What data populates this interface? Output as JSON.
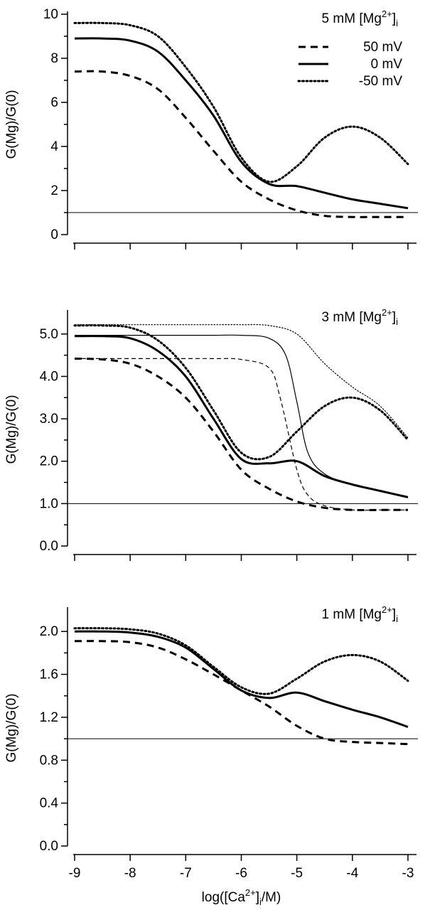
{
  "chart_data": [
    {
      "type": "line",
      "title": "5 mM [Mg2+]i",
      "title_parts": {
        "base": "5 mM [Mg",
        "sup": "2+",
        "close": "]",
        "sub": "i"
      },
      "ylabel": "G(Mg)/G(0)",
      "xlabel": "",
      "xlim": [
        -9,
        -3
      ],
      "ylim": [
        0,
        10
      ],
      "yticks": [
        0,
        2,
        4,
        6,
        8,
        10
      ],
      "ytick_labels": [
        "0",
        "2",
        "4",
        "6",
        "8",
        "10"
      ],
      "reference_line": 1.0,
      "legend": {
        "placement": "top-right",
        "entries": [
          "50 mV",
          "0 mV",
          "-50 mV"
        ]
      },
      "series": [
        {
          "name": "50 mV",
          "style": "dashed",
          "weight": "thick",
          "x": [
            -9,
            -8.5,
            -8,
            -7.5,
            -7,
            -6.5,
            -6,
            -5.5,
            -5,
            -4.5,
            -4,
            -3.5,
            -3
          ],
          "y": [
            7.4,
            7.4,
            7.2,
            6.6,
            5.3,
            3.8,
            2.4,
            1.6,
            1.1,
            0.85,
            0.8,
            0.8,
            0.8
          ]
        },
        {
          "name": "0 mV",
          "style": "solid",
          "weight": "thick",
          "x": [
            -9,
            -8.5,
            -8,
            -7.5,
            -7,
            -6.5,
            -6,
            -5.5,
            -5,
            -4.5,
            -4,
            -3.5,
            -3
          ],
          "y": [
            8.9,
            8.9,
            8.8,
            8.3,
            7.0,
            5.4,
            3.3,
            2.3,
            2.2,
            1.9,
            1.6,
            1.4,
            1.2
          ]
        },
        {
          "name": "-50 mV",
          "style": "dotted",
          "weight": "thick",
          "x": [
            -9,
            -8.5,
            -8,
            -7.5,
            -7,
            -6.5,
            -6,
            -5.5,
            -5,
            -4.5,
            -4,
            -3.5,
            -3
          ],
          "y": [
            9.6,
            9.6,
            9.5,
            9.0,
            7.6,
            5.8,
            3.5,
            2.4,
            3.1,
            4.4,
            4.9,
            4.4,
            3.2
          ]
        }
      ]
    },
    {
      "type": "line",
      "title": "3 mM [Mg2+]i",
      "title_parts": {
        "base": "3 mM [Mg",
        "sup": "2+",
        "close": "]",
        "sub": "i"
      },
      "ylabel": "G(Mg)/G(0)",
      "xlabel": "",
      "xlim": [
        -9,
        -3
      ],
      "ylim": [
        0,
        5.5
      ],
      "yticks": [
        0,
        1,
        2,
        3,
        4,
        5
      ],
      "ytick_labels": [
        "0.0",
        "1.0",
        "2.0",
        "3.0",
        "4.0",
        "5.0"
      ],
      "reference_line": 1.0,
      "series": [
        {
          "name": "50 mV",
          "style": "dashed",
          "weight": "thick",
          "x": [
            -9,
            -8.5,
            -8,
            -7.5,
            -7,
            -6.5,
            -6,
            -5.5,
            -5,
            -4.5,
            -4,
            -3.5,
            -3
          ],
          "y": [
            4.42,
            4.4,
            4.3,
            4.0,
            3.5,
            2.7,
            1.8,
            1.35,
            1.05,
            0.9,
            0.85,
            0.85,
            0.85
          ]
        },
        {
          "name": "0 mV",
          "style": "solid",
          "weight": "thick",
          "x": [
            -9,
            -8.5,
            -8,
            -7.5,
            -7,
            -6.5,
            -6,
            -5.5,
            -5,
            -4.5,
            -4,
            -3.5,
            -3
          ],
          "y": [
            4.95,
            4.95,
            4.9,
            4.6,
            4.0,
            3.0,
            2.05,
            1.95,
            2.0,
            1.65,
            1.45,
            1.3,
            1.15
          ]
        },
        {
          "name": "-50 mV",
          "style": "dotted",
          "weight": "thick",
          "x": [
            -9,
            -8.5,
            -8,
            -7.5,
            -7,
            -6.5,
            -6,
            -5.5,
            -5,
            -4.5,
            -4,
            -3.5,
            -3
          ],
          "y": [
            5.2,
            5.2,
            5.15,
            4.85,
            4.2,
            3.2,
            2.2,
            2.1,
            2.7,
            3.3,
            3.5,
            3.2,
            2.5
          ]
        },
        {
          "name": "50 mV (thin)",
          "style": "dashed",
          "weight": "thin",
          "x": [
            -9,
            -8.5,
            -8,
            -7.5,
            -7,
            -6.5,
            -6,
            -5.5,
            -5.3,
            -5,
            -4.8,
            -4.5,
            -4,
            -3.5,
            -3
          ],
          "y": [
            4.42,
            4.42,
            4.42,
            4.42,
            4.42,
            4.42,
            4.4,
            4.2,
            3.5,
            1.8,
            1.2,
            0.95,
            0.85,
            0.85,
            0.85
          ]
        },
        {
          "name": "0 mV (thin)",
          "style": "solid",
          "weight": "thin",
          "x": [
            -9,
            -8.5,
            -8,
            -7.5,
            -7,
            -6.5,
            -6,
            -5.5,
            -5.2,
            -5,
            -4.8,
            -4.5,
            -4,
            -3.5,
            -3
          ],
          "y": [
            4.97,
            4.97,
            4.97,
            4.97,
            4.97,
            4.97,
            4.97,
            4.9,
            4.5,
            3.4,
            2.2,
            1.7,
            1.45,
            1.3,
            1.15
          ]
        },
        {
          "name": "-50 mV (thin)",
          "style": "dotted",
          "weight": "thin",
          "x": [
            -9,
            -8.5,
            -8,
            -7.5,
            -7,
            -6.5,
            -6,
            -5.5,
            -5,
            -4.5,
            -4,
            -3.5,
            -3
          ],
          "y": [
            5.22,
            5.22,
            5.22,
            5.22,
            5.22,
            5.22,
            5.22,
            5.2,
            5.0,
            4.3,
            3.75,
            3.3,
            2.55
          ]
        }
      ]
    },
    {
      "type": "line",
      "title": "1 mM [Mg2+]i",
      "title_parts": {
        "base": "1 mM [Mg",
        "sup": "2+",
        "close": "]",
        "sub": "i"
      },
      "ylabel": "G(Mg)/G(0)",
      "xlabel": "log([Ca2+]i/M)",
      "xlabel_parts": {
        "base": "log([Ca",
        "sup": "2+",
        "close": "]",
        "sub": "i",
        "tail": "/M)"
      },
      "xlim": [
        -9,
        -3
      ],
      "ylim": [
        0,
        2.2
      ],
      "xticks": [
        -9,
        -8,
        -7,
        -6,
        -5,
        -4,
        -3
      ],
      "xtick_labels": [
        "-9",
        "-8",
        "-7",
        "-6",
        "-5",
        "-4",
        "-3"
      ],
      "yticks": [
        0,
        0.4,
        0.8,
        1.2,
        1.6,
        2.0
      ],
      "ytick_labels": [
        "0.0",
        "0.4",
        "0.8",
        "1.2",
        "1.6",
        "2.0"
      ],
      "reference_line": 1.0,
      "series": [
        {
          "name": "50 mV",
          "style": "dashed",
          "weight": "thick",
          "x": [
            -9,
            -8.5,
            -8,
            -7.5,
            -7,
            -6.5,
            -6,
            -5.5,
            -5,
            -4.5,
            -4,
            -3.5,
            -3
          ],
          "y": [
            1.91,
            1.91,
            1.9,
            1.85,
            1.74,
            1.6,
            1.45,
            1.3,
            1.12,
            1.0,
            0.97,
            0.96,
            0.95
          ]
        },
        {
          "name": "0 mV",
          "style": "solid",
          "weight": "thick",
          "x": [
            -9,
            -8.5,
            -8,
            -7.5,
            -7,
            -6.5,
            -6,
            -5.5,
            -5,
            -4.5,
            -4,
            -3.5,
            -3
          ],
          "y": [
            2.0,
            2.0,
            1.99,
            1.95,
            1.85,
            1.65,
            1.45,
            1.38,
            1.43,
            1.35,
            1.27,
            1.2,
            1.11
          ]
        },
        {
          "name": "-50 mV",
          "style": "dotted",
          "weight": "thick",
          "x": [
            -9,
            -8.5,
            -8,
            -7.5,
            -7,
            -6.5,
            -6,
            -5.5,
            -5,
            -4.5,
            -4,
            -3.5,
            -3
          ],
          "y": [
            2.03,
            2.03,
            2.02,
            1.98,
            1.87,
            1.67,
            1.48,
            1.42,
            1.56,
            1.72,
            1.78,
            1.72,
            1.54
          ]
        }
      ]
    }
  ]
}
